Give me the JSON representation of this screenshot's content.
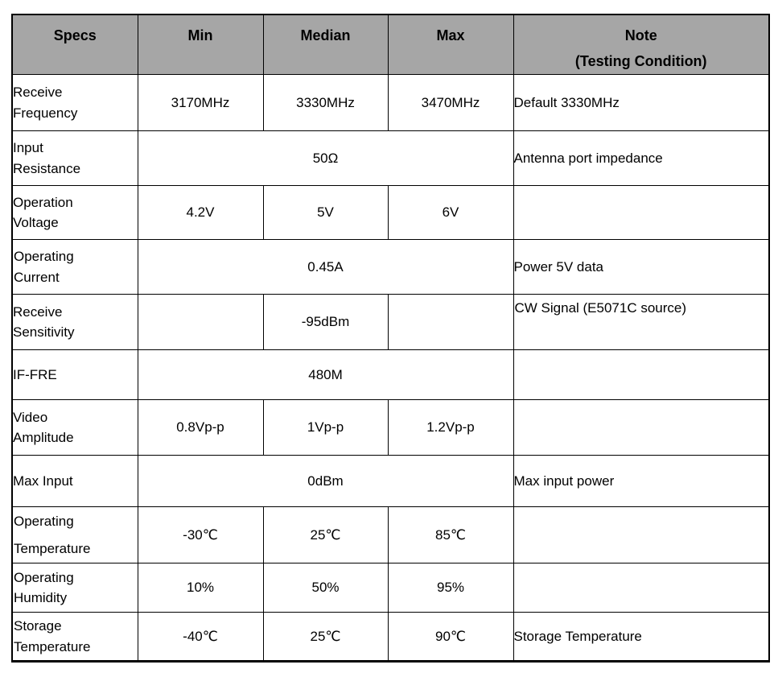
{
  "colors": {
    "header_background": "#a6a6a6",
    "border": "#000000",
    "text": "#000000",
    "page_background": "#ffffff"
  },
  "table": {
    "header": {
      "specs": "Specs",
      "min": "Min",
      "median": "Median",
      "max": "Max",
      "note_line1": "Note",
      "note_line2": "(Testing Condition)"
    },
    "rows": [
      {
        "spec": "Receive\nFrequency",
        "min": "3170MHz",
        "median": "3330MHz",
        "max": "3470MHz",
        "note": "Default 3330MHz"
      },
      {
        "spec": "Input\nResistance",
        "merged": "50Ω",
        "note": "Antenna port impedance"
      },
      {
        "spec": "Operation\nVoltage",
        "min": "4.2V",
        "median": "5V",
        "max": "6V",
        "note": ""
      },
      {
        "spec": "Operating\nCurrent",
        "flush": true,
        "merged": "0.45A",
        "note": "Power 5V data"
      },
      {
        "spec": "Receive\nSensitivity",
        "min": "",
        "median": "-95dBm",
        "max": "",
        "note": "CW Signal (E5071C source)",
        "note_top": true
      },
      {
        "spec": "IF-FRE",
        "merged": "480M",
        "note": ""
      },
      {
        "spec": "Video\nAmplitude",
        "min": "0.8Vp-p",
        "median": "1Vp-p",
        "max": "1.2Vp-p",
        "note": ""
      },
      {
        "spec": "Max Input",
        "merged": "0dBm",
        "note": "Max input power"
      },
      {
        "spec": "Operating\nTemperature",
        "flush": true,
        "spread": true,
        "min": "-30℃",
        "median": "25℃",
        "max": "85℃",
        "note": ""
      },
      {
        "spec": "Operating\nHumidity",
        "flush": true,
        "min": "10%",
        "median": "50%",
        "max": "95%",
        "note": ""
      },
      {
        "spec": "Storage\nTemperature",
        "flush": true,
        "min": "-40℃",
        "median": "25℃",
        "max": "90℃",
        "note": "Storage Temperature"
      }
    ]
  }
}
